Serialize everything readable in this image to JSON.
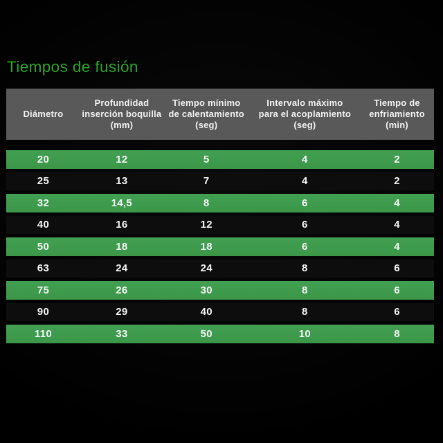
{
  "title": "Tiempos de fusión",
  "colors": {
    "background": "#000000",
    "title_green": "#2da32d",
    "row_highlight_green": "#3e9b4c",
    "header_gray": "#595959",
    "row_dark": "#0d0d0d",
    "text": "#f5f5f5"
  },
  "table": {
    "headers": [
      "Diámetro",
      "Profundidad\ninserción boquilla\n(mm)",
      "Tiempo mínimo\nde calentamiento\n(seg)",
      "Intervalo máximo\npara el acoplamiento\n(seg)",
      "Tiempo de\nenfriamiento\n(min)"
    ],
    "rows": [
      {
        "highlight": true,
        "values": [
          "20",
          "12",
          "5",
          "4",
          "2"
        ]
      },
      {
        "highlight": false,
        "values": [
          "25",
          "13",
          "7",
          "4",
          "2"
        ]
      },
      {
        "highlight": true,
        "values": [
          "32",
          "14,5",
          "8",
          "6",
          "4"
        ]
      },
      {
        "highlight": false,
        "values": [
          "40",
          "16",
          "12",
          "6",
          "4"
        ]
      },
      {
        "highlight": true,
        "values": [
          "50",
          "18",
          "18",
          "6",
          "4"
        ]
      },
      {
        "highlight": false,
        "values": [
          "63",
          "24",
          "24",
          "8",
          "6"
        ]
      },
      {
        "highlight": true,
        "values": [
          "75",
          "26",
          "30",
          "8",
          "6"
        ]
      },
      {
        "highlight": false,
        "values": [
          "90",
          "29",
          "40",
          "8",
          "6"
        ]
      },
      {
        "highlight": true,
        "values": [
          "110",
          "33",
          "50",
          "10",
          "8"
        ]
      }
    ]
  },
  "chart_data": {
    "type": "table",
    "title": "Tiempos de fusión",
    "columns": [
      "Diámetro",
      "Profundidad inserción boquilla (mm)",
      "Tiempo mínimo de calentamiento (seg)",
      "Intervalo máximo para el acoplamiento (seg)",
      "Tiempo de enfriamiento (min)"
    ],
    "rows": [
      [
        "20",
        "12",
        "5",
        "4",
        "2"
      ],
      [
        "25",
        "13",
        "7",
        "4",
        "2"
      ],
      [
        "32",
        "14,5",
        "8",
        "6",
        "4"
      ],
      [
        "40",
        "16",
        "12",
        "6",
        "4"
      ],
      [
        "50",
        "18",
        "18",
        "6",
        "4"
      ],
      [
        "63",
        "24",
        "24",
        "8",
        "6"
      ],
      [
        "75",
        "26",
        "30",
        "8",
        "6"
      ],
      [
        "90",
        "29",
        "40",
        "8",
        "6"
      ],
      [
        "110",
        "33",
        "50",
        "10",
        "8"
      ]
    ],
    "highlighted_row_indices": [
      0,
      2,
      4,
      6,
      8
    ],
    "layout": {
      "legend": false,
      "grid": false,
      "header_band": true,
      "alternating_row_highlight": true
    }
  }
}
